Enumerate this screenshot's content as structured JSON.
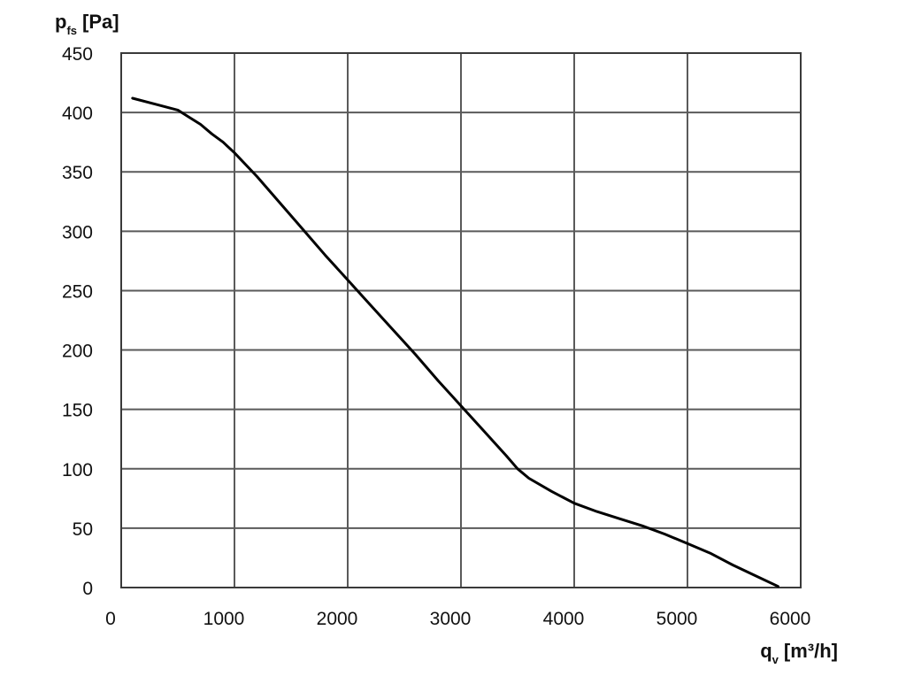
{
  "chart_data": {
    "type": "line",
    "ylabel": {
      "symbol": "p",
      "subscript": "fs",
      "unit": "[Pa]"
    },
    "xlabel": {
      "symbol": "q",
      "subscript": "v",
      "unit": "[m³/h]"
    },
    "xlim": [
      0,
      6000
    ],
    "ylim": [
      0,
      450
    ],
    "x_ticks": [
      0,
      1000,
      2000,
      3000,
      4000,
      5000,
      6000
    ],
    "y_ticks": [
      0,
      50,
      100,
      150,
      200,
      250,
      300,
      350,
      400,
      450
    ],
    "x_tick_labels": [
      "0",
      "1000",
      "2000",
      "3000",
      "4000",
      "5000",
      "6000"
    ],
    "y_tick_labels": [
      "0",
      "50",
      "100",
      "150",
      "200",
      "250",
      "300",
      "350",
      "400",
      "450"
    ],
    "grid": true,
    "series": [
      {
        "color": "#000000",
        "x": [
          100,
          300,
          500,
          600,
          700,
          800,
          900,
          1000,
          1200,
          1400,
          1600,
          1800,
          2000,
          2200,
          2400,
          2600,
          2800,
          3000,
          3200,
          3400,
          3500,
          3600,
          3800,
          4000,
          4200,
          4400,
          4600,
          4800,
          5000,
          5200,
          5400,
          5600,
          5800
        ],
        "y": [
          412,
          407,
          402,
          396,
          390,
          382,
          375,
          366,
          346,
          324,
          302,
          280,
          259,
          238,
          217,
          196,
          174,
          153,
          132,
          111,
          100,
          92,
          81,
          71,
          64,
          58,
          52,
          45,
          37,
          29,
          19,
          10,
          1
        ]
      }
    ]
  }
}
